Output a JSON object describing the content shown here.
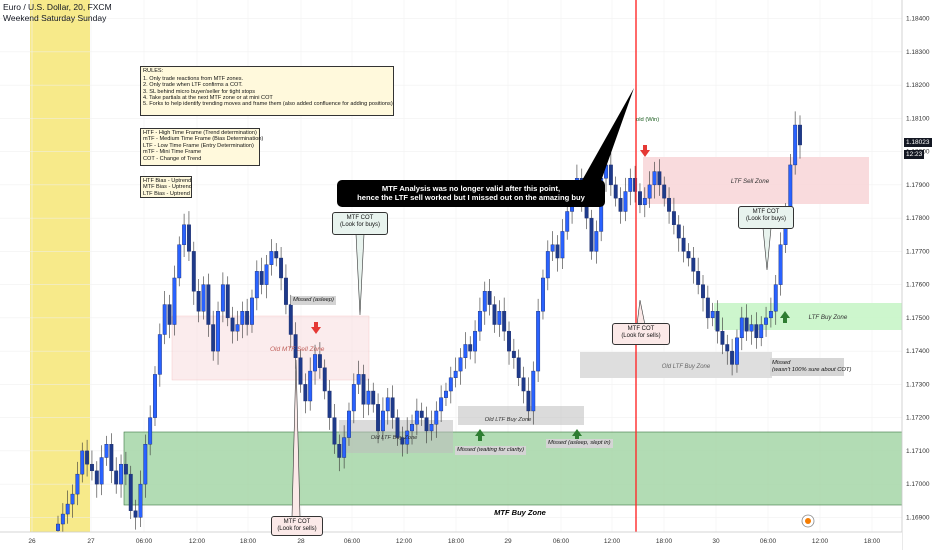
{
  "symbol": {
    "line1": "Euro / U.S. Dollar, 20, FXCM",
    "line2": "Weekend Saturday Sunday"
  },
  "rules": {
    "title": "RULES:",
    "items": [
      "1. Only trade reactions from MTF zones.",
      "2. Only trade when LTF confirms a COT.",
      "3. SL behind micro buyer/seller for tight stops",
      "4. Take partials at the next MTF zone or at mini COT",
      "5. Forks to help identify trending moves and frame them (also added confluence for adding positions)"
    ]
  },
  "legend": {
    "items": [
      "HTF - High Time Frame (Trend determination)",
      "mTF - Medium Time Frame (Bias Determination)",
      "LTF - Low Time Frame (Entry Determination)",
      "mTF - Mini Time Frame",
      "COT - Change of Trend"
    ]
  },
  "bias": {
    "items": [
      "HTF Bias - Uptrend",
      "MTF Bias - Uptrend",
      "LTF Bias - Uptrend"
    ]
  },
  "analysis_text": {
    "line1": "MTF Analysis was no longer valid after this point,",
    "line2": "hence the LTF sell worked but I missed out on the amazing buy"
  },
  "annotations": {
    "missed_asleep": "Missed (asleep)",
    "old_mtf_sell_zone": "Old MTF Sell Zone",
    "mtf_cot_buys_1": {
      "line1": "MTF COT",
      "line2": "(Look for buys)"
    },
    "mtf_cot_sells_bottom": {
      "line1": "MTF COT",
      "line2": "(Look for sells)"
    },
    "old_ltf_buy_zone_1": "Old LTF Buy Zone",
    "old_ltf_buy_zone_2": "Old LTF Buy Zone",
    "missed_waiting": "Missed (waiting for clarity)",
    "missed_slept": "Missed (asleep, slept in)",
    "mtf_buy_zone": "MTF Buy Zone",
    "mtf_cot_sells": {
      "line1": "MTF COT",
      "line2": "(Look for sells)"
    },
    "old_ltf_buy_zone_3": "Old LTF Buy Zone",
    "ltf_sell_zone": "LTF Sell Zone",
    "mtf_cot_buys_2": {
      "line1": "MTF COT",
      "line2": "(Look for buys)"
    },
    "ltf_buy_zone": "LTF Buy Zone",
    "missed_not_sure": {
      "line1": "Missed",
      "line2": "(wasn't 100% sure about COT)"
    },
    "old_win": "old (Win)"
  },
  "current_price": {
    "value": "1.18023",
    "countdown": "12:23"
  },
  "colors": {
    "up": "#2962ff",
    "buyzone": "#a5d6a7",
    "sellzone": "#f8d7d9",
    "oldzone": "#d6d6d6",
    "weekend": "#f7ea8a",
    "vline": "#ff2b2b"
  },
  "chart_data": {
    "type": "candlestick",
    "y_ticks": [
      "1.18400",
      "1.18300",
      "1.18200",
      "1.18100",
      "1.18000",
      "1.17900",
      "1.17800",
      "1.17700",
      "1.17600",
      "1.17500",
      "1.17400",
      "1.17300",
      "1.17200",
      "1.17100",
      "1.17000",
      "1.16900"
    ],
    "x_ticks": [
      "26",
      "27",
      "06:00",
      "12:00",
      "18:00",
      "28",
      "06:00",
      "12:00",
      "18:00",
      "29",
      "06:00",
      "12:00",
      "18:00",
      "30",
      "06:00",
      "12:00",
      "18:00"
    ],
    "ylim": [
      1.1685,
      1.1845
    ],
    "close_path": [
      1.1688,
      1.1691,
      1.1694,
      1.1697,
      1.1703,
      1.171,
      1.1706,
      1.1704,
      1.17,
      1.1708,
      1.1712,
      1.1704,
      1.17,
      1.1706,
      1.1703,
      1.1692,
      1.169,
      1.17,
      1.1712,
      1.172,
      1.1733,
      1.1745,
      1.1754,
      1.1748,
      1.1762,
      1.1772,
      1.1778,
      1.177,
      1.1758,
      1.1752,
      1.176,
      1.1748,
      1.174,
      1.1752,
      1.176,
      1.175,
      1.1746,
      1.1748,
      1.1752,
      1.1748,
      1.1756,
      1.1764,
      1.176,
      1.1766,
      1.177,
      1.1768,
      1.1762,
      1.1754,
      1.1745,
      1.1738,
      1.173,
      1.1725,
      1.1734,
      1.1739,
      1.1735,
      1.1728,
      1.172,
      1.1712,
      1.1708,
      1.1714,
      1.1722,
      1.173,
      1.1733,
      1.1724,
      1.1728,
      1.1724,
      1.1716,
      1.1722,
      1.1726,
      1.172,
      1.1714,
      1.1712,
      1.1716,
      1.1718,
      1.1722,
      1.172,
      1.1716,
      1.1718,
      1.1722,
      1.1726,
      1.1728,
      1.1732,
      1.1734,
      1.1738,
      1.1742,
      1.174,
      1.1746,
      1.1752,
      1.1758,
      1.1754,
      1.1748,
      1.1752,
      1.1746,
      1.174,
      1.1738,
      1.1732,
      1.1728,
      1.1722,
      1.1734,
      1.1752,
      1.1762,
      1.177,
      1.1772,
      1.1768,
      1.1776,
      1.1782,
      1.1788,
      1.1792,
      1.1786,
      1.178,
      1.177,
      1.1776,
      1.1792,
      1.1796,
      1.179,
      1.1786,
      1.1782,
      1.1788,
      1.1792,
      1.1788,
      1.1784,
      1.1786,
      1.179,
      1.1794,
      1.179,
      1.1786,
      1.1782,
      1.1778,
      1.1774,
      1.177,
      1.1768,
      1.1764,
      1.176,
      1.1756,
      1.175,
      1.1752,
      1.1746,
      1.1742,
      1.174,
      1.1736,
      1.1744,
      1.175,
      1.1746,
      1.1748,
      1.1744,
      1.1748,
      1.175,
      1.1752,
      1.176,
      1.1772,
      1.1782,
      1.1796,
      1.1808,
      1.1802
    ]
  }
}
